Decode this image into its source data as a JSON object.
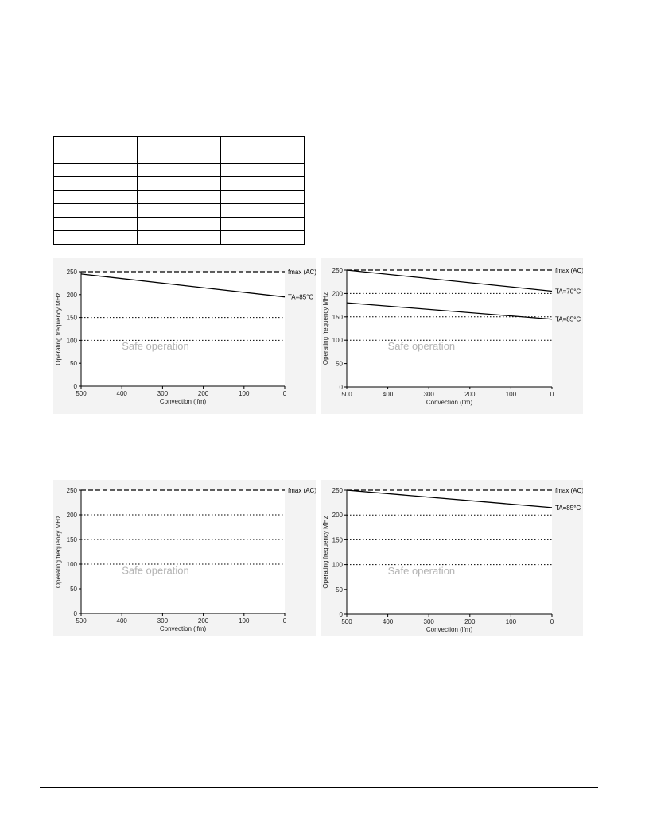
{
  "table": {
    "rows": [
      [
        "",
        "",
        ""
      ],
      [
        "",
        "",
        ""
      ],
      [
        "",
        "",
        ""
      ],
      [
        "",
        "",
        ""
      ],
      [
        "",
        "",
        ""
      ],
      [
        "",
        "",
        ""
      ],
      [
        "",
        "",
        ""
      ]
    ]
  },
  "chart_data": [
    {
      "type": "line",
      "title": "",
      "xlabel": "Convection (lfm)",
      "ylabel": "Operating frequency MHz",
      "xlim": [
        500,
        0
      ],
      "ylim": [
        0,
        250
      ],
      "x_ticks": [
        "500",
        "400",
        "300",
        "200",
        "100",
        "0"
      ],
      "y_ticks": [
        "0",
        "50",
        "100",
        "150",
        "200",
        "250"
      ],
      "region_label": "Safe operation",
      "reference_lines": [
        {
          "label": "fmax (AC)",
          "y": 250,
          "style": "dashed"
        },
        {
          "y": 150,
          "style": "dotted"
        },
        {
          "y": 100,
          "style": "dotted"
        }
      ],
      "series": [
        {
          "name": "TA=85°C",
          "x": [
            500,
            0
          ],
          "y": [
            245,
            195
          ]
        }
      ]
    },
    {
      "type": "line",
      "title": "",
      "xlabel": "Convection (lfm)",
      "ylabel": "Operating frequency MHz",
      "xlim": [
        500,
        0
      ],
      "ylim": [
        0,
        250
      ],
      "x_ticks": [
        "500",
        "400",
        "300",
        "200",
        "100",
        "0"
      ],
      "y_ticks": [
        "0",
        "50",
        "100",
        "150",
        "200",
        "250"
      ],
      "region_label": "Safe operation",
      "reference_lines": [
        {
          "label": "fmax (AC)",
          "y": 250,
          "style": "dashed"
        },
        {
          "y": 200,
          "style": "dotted"
        },
        {
          "y": 150,
          "style": "dotted"
        },
        {
          "y": 100,
          "style": "dotted"
        }
      ],
      "series": [
        {
          "name": "TA=70°C",
          "x": [
            500,
            0
          ],
          "y": [
            250,
            205
          ]
        },
        {
          "name": "TA=85°C",
          "x": [
            500,
            0
          ],
          "y": [
            180,
            145
          ]
        }
      ]
    },
    {
      "type": "line",
      "title": "",
      "xlabel": "Convection (lfm)",
      "ylabel": "Operating frequency MHz",
      "xlim": [
        500,
        0
      ],
      "ylim": [
        0,
        250
      ],
      "x_ticks": [
        "500",
        "400",
        "300",
        "200",
        "100",
        "0"
      ],
      "y_ticks": [
        "0",
        "50",
        "100",
        "150",
        "200",
        "250"
      ],
      "region_label": "Safe operation",
      "reference_lines": [
        {
          "label": "fmax (AC)",
          "y": 250,
          "style": "dashed"
        },
        {
          "y": 200,
          "style": "dotted"
        },
        {
          "y": 150,
          "style": "dotted"
        },
        {
          "y": 100,
          "style": "dotted"
        }
      ],
      "series": []
    },
    {
      "type": "line",
      "title": "",
      "xlabel": "Convection (lfm)",
      "ylabel": "Operating frequency MHz",
      "xlim": [
        500,
        0
      ],
      "ylim": [
        0,
        250
      ],
      "x_ticks": [
        "500",
        "400",
        "300",
        "200",
        "100",
        "0"
      ],
      "y_ticks": [
        "0",
        "50",
        "100",
        "150",
        "200",
        "250"
      ],
      "region_label": "Safe operation",
      "reference_lines": [
        {
          "label": "fmax (AC)",
          "y": 250,
          "style": "dashed"
        },
        {
          "y": 200,
          "style": "dotted"
        },
        {
          "y": 150,
          "style": "dotted"
        },
        {
          "y": 100,
          "style": "dotted"
        }
      ],
      "series": [
        {
          "name": "TA=85°C",
          "x": [
            500,
            0
          ],
          "y": [
            250,
            215
          ]
        }
      ]
    }
  ]
}
